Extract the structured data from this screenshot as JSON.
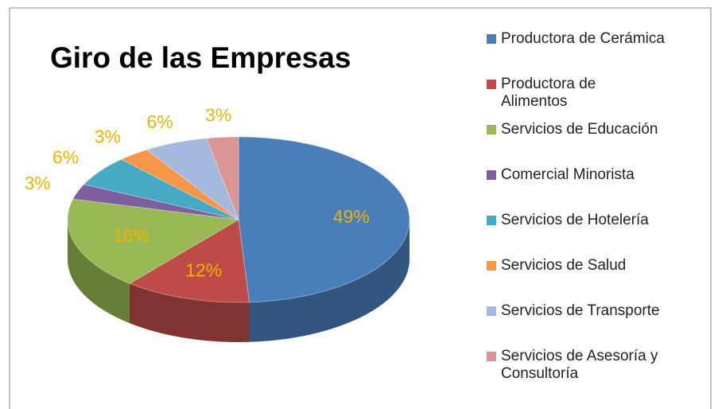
{
  "chart_data": {
    "type": "pie",
    "title": "Giro de las Empresas",
    "categories": [
      "Productora de Cerámica",
      "Productora de Alimentos",
      "Servicios de Educación",
      "Comercial Minorista",
      "Servicios de Hotelería",
      "Servicios de Salud",
      "Servicios de Transporte",
      "Servicios de Asesoría y Consultoría"
    ],
    "values": [
      49,
      12,
      18,
      3,
      6,
      3,
      6,
      3
    ],
    "value_labels": [
      "49%",
      "12%",
      "18%",
      "3%",
      "6%",
      "3%",
      "6%",
      "3%"
    ],
    "colors": [
      "#4a7ebb",
      "#be4b48",
      "#98b954",
      "#7d5fa0",
      "#46aac5",
      "#f79646",
      "#a5b9de",
      "#d99694"
    ],
    "legend": "right"
  }
}
